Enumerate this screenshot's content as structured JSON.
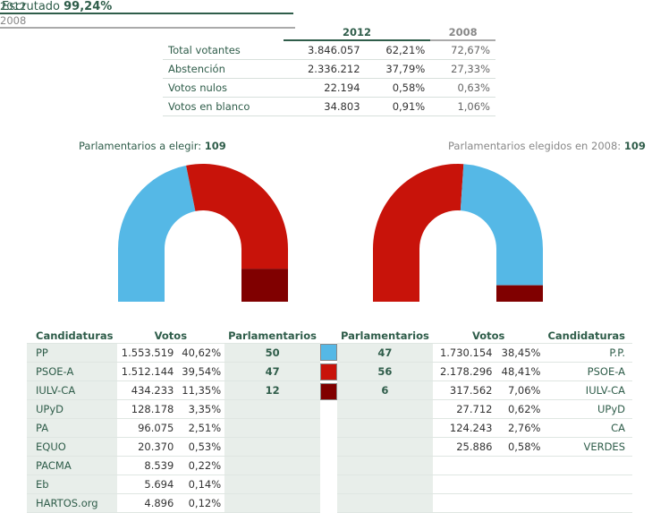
{
  "escrutado": {
    "label": "Escrutado",
    "value": "99,24%"
  },
  "summary": {
    "year_2012": "2012",
    "year_2008": "2008",
    "rows": [
      {
        "label": "Total votantes",
        "v2012": "3.846.057",
        "p2012": "62,21%",
        "p2008": "72,67%"
      },
      {
        "label": "Abstención",
        "v2012": "2.336.212",
        "p2012": "37,79%",
        "p2008": "27,33%"
      },
      {
        "label": "Votos nulos",
        "v2012": "22.194",
        "p2012": "0,58%",
        "p2008": "0,63%"
      },
      {
        "label": "Votos en blanco",
        "v2012": "34.803",
        "p2012": "0,91%",
        "p2008": "1,06%"
      }
    ]
  },
  "parl2012": {
    "label": "Parlamentarios a elegir:",
    "value": "109"
  },
  "parl2008": {
    "label": "Parlamentarios elegidos en 2008:",
    "value": "109"
  },
  "seats2012": [
    {
      "party": "PP",
      "seats": 50,
      "color": "#55b8e6"
    },
    {
      "party": "PSOE-A",
      "seats": 47,
      "color": "#c8130a"
    },
    {
      "party": "IULV-CA",
      "seats": 12,
      "color": "#800000"
    }
  ],
  "seats2008": [
    {
      "party": "PSOE-A",
      "seats": 56,
      "color": "#c8130a"
    },
    {
      "party": "PP",
      "seats": 47,
      "color": "#55b8e6"
    },
    {
      "party": "IULV-CA",
      "seats": 6,
      "color": "#800000"
    }
  ],
  "table2012": {
    "year": "2012",
    "headers": {
      "cand": "Candidaturas",
      "votos": "Votos",
      "parl": "Parlamentarios"
    },
    "rows": [
      {
        "cand": "PP",
        "votos": "1.553.519",
        "pct": "40,62%",
        "parl": "50"
      },
      {
        "cand": "PSOE-A",
        "votos": "1.512.144",
        "pct": "39,54%",
        "parl": "47"
      },
      {
        "cand": "IULV-CA",
        "votos": "434.233",
        "pct": "11,35%",
        "parl": "12"
      },
      {
        "cand": "UPyD",
        "votos": "128.178",
        "pct": "3,35%",
        "parl": ""
      },
      {
        "cand": "PA",
        "votos": "96.075",
        "pct": "2,51%",
        "parl": ""
      },
      {
        "cand": "EQUO",
        "votos": "20.370",
        "pct": "0,53%",
        "parl": ""
      },
      {
        "cand": "PACMA",
        "votos": "8.539",
        "pct": "0,22%",
        "parl": ""
      },
      {
        "cand": "Eb",
        "votos": "5.694",
        "pct": "0,14%",
        "parl": ""
      },
      {
        "cand": "HARTOS.org",
        "votos": "4.896",
        "pct": "0,12%",
        "parl": ""
      }
    ]
  },
  "swatches": [
    "#55b8e6",
    "#c8130a",
    "#800000"
  ],
  "table2008": {
    "year": "2008",
    "headers": {
      "parl": "Parlamentarios",
      "votos": "Votos",
      "cand": "Candidaturas"
    },
    "rows": [
      {
        "parl": "47",
        "votos": "1.730.154",
        "pct": "38,45%",
        "cand": "P.P."
      },
      {
        "parl": "56",
        "votos": "2.178.296",
        "pct": "48,41%",
        "cand": "PSOE-A"
      },
      {
        "parl": "6",
        "votos": "317.562",
        "pct": "7,06%",
        "cand": "IULV-CA"
      },
      {
        "parl": "",
        "votos": "27.712",
        "pct": "0,62%",
        "cand": "UPyD"
      },
      {
        "parl": "",
        "votos": "124.243",
        "pct": "2,76%",
        "cand": "CA"
      },
      {
        "parl": "",
        "votos": "25.886",
        "pct": "0,58%",
        "cand": "VERDES"
      },
      {
        "parl": "",
        "votos": "",
        "pct": "",
        "cand": ""
      },
      {
        "parl": "",
        "votos": "",
        "pct": "",
        "cand": ""
      },
      {
        "parl": "",
        "votos": "",
        "pct": "",
        "cand": ""
      }
    ]
  }
}
